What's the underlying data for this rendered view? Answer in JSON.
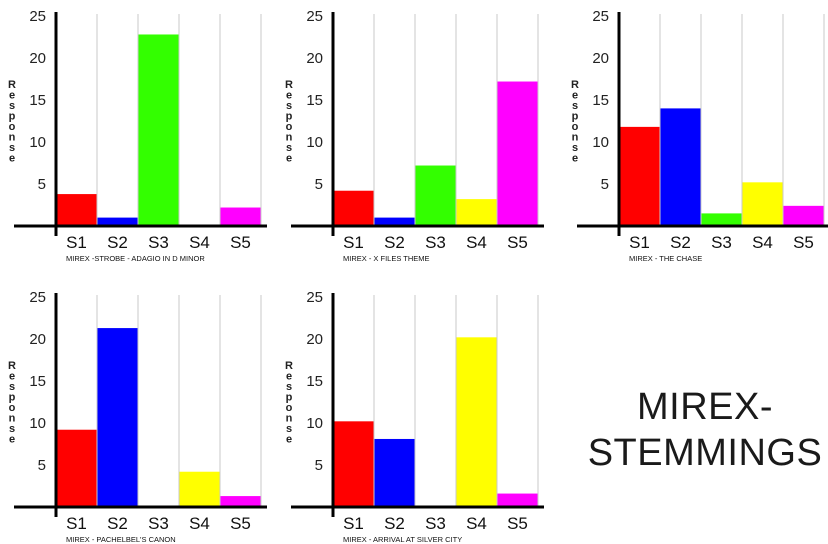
{
  "title": {
    "line1": "MIREX-",
    "line2": "STEMMINGS"
  },
  "bar_colors": {
    "S1": "#ff0000",
    "S2": "#0000ff",
    "S3": "#33ff00",
    "S4": "#ffff00",
    "S5": "#ff00ff"
  },
  "chart_data": [
    {
      "type": "bar",
      "subtitle": "MIREX -STROBE - ADAGIO IN D MINOR",
      "ylabel": "Response",
      "ylim": [
        0,
        25
      ],
      "yticks": [
        5,
        10,
        15,
        20,
        25
      ],
      "categories": [
        "S1",
        "S2",
        "S3",
        "S4",
        "S5"
      ],
      "values": [
        3.8,
        1.0,
        22.8,
        0,
        2.2
      ],
      "grid": true
    },
    {
      "type": "bar",
      "subtitle": "MIREX - X FILES THEME",
      "ylabel": "Response",
      "ylim": [
        0,
        25
      ],
      "yticks": [
        5,
        10,
        15,
        20,
        25
      ],
      "categories": [
        "S1",
        "S2",
        "S3",
        "S4",
        "S5"
      ],
      "values": [
        4.2,
        1.0,
        7.2,
        3.2,
        17.2
      ],
      "grid": true
    },
    {
      "type": "bar",
      "subtitle": "MIREX - THE CHASE",
      "ylabel": "Response",
      "ylim": [
        0,
        25
      ],
      "yticks": [
        5,
        10,
        15,
        20,
        25
      ],
      "categories": [
        "S1",
        "S2",
        "S3",
        "S4",
        "S5"
      ],
      "values": [
        11.8,
        14.0,
        1.5,
        5.2,
        2.4
      ],
      "grid": true
    },
    {
      "type": "bar",
      "subtitle": "MIREX -   PACHELBEL'S CANON",
      "ylabel": "Response",
      "ylim": [
        0,
        25
      ],
      "yticks": [
        5,
        10,
        15,
        20,
        25
      ],
      "categories": [
        "S1",
        "S2",
        "S3",
        "S4",
        "S5"
      ],
      "values": [
        9.2,
        21.3,
        0,
        4.2,
        1.3
      ],
      "grid": true
    },
    {
      "type": "bar",
      "subtitle": "MIREX - ARRIVAL AT SILVER CITY",
      "ylabel": "Response",
      "ylim": [
        0,
        25
      ],
      "yticks": [
        5,
        10,
        15,
        20,
        25
      ],
      "categories": [
        "S1",
        "S2",
        "S3",
        "S4",
        "S5"
      ],
      "values": [
        10.2,
        8.1,
        0,
        20.2,
        1.6
      ],
      "grid": true
    }
  ]
}
